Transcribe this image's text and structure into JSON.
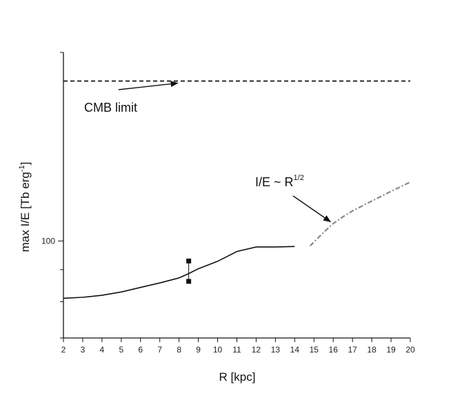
{
  "chart_data": {
    "type": "line",
    "xlabel": "R [kpc]",
    "ylabel": {
      "main": "max I/E [Tb erg",
      "sup": "-1",
      "close": "]"
    },
    "xlim": [
      2,
      20
    ],
    "ylim": [
      70,
      200
    ],
    "y_scale": "log",
    "x_ticks": [
      "2",
      "3",
      "4",
      "5",
      "6",
      "7",
      "8",
      "9",
      "10",
      "11",
      "12",
      "13",
      "14",
      "15",
      "16",
      "17",
      "18",
      "19",
      "20"
    ],
    "y_tick_labels": [
      {
        "value": 100,
        "label": "100"
      }
    ],
    "series": [
      {
        "style": "solid",
        "x": [
          2,
          3,
          4,
          5,
          6,
          7,
          8,
          8.5,
          9,
          10,
          11,
          12,
          13,
          14
        ],
        "y": [
          81,
          81.3,
          81.9,
          82.9,
          84.3,
          85.7,
          87.3,
          88.7,
          90.3,
          92.8,
          96.2,
          97.8,
          97.8,
          98.0
        ]
      },
      {
        "style": "dash-dot",
        "x": [
          14.8,
          15,
          15.5,
          16,
          16.5,
          17,
          18,
          19,
          20
        ],
        "y": [
          98.2,
          99.6,
          103.2,
          106.6,
          109.3,
          111.7,
          115.8,
          120.0,
          124.2
        ]
      },
      {
        "style": "dashed",
        "x": [
          2,
          20
        ],
        "y": [
          180,
          180
        ]
      }
    ],
    "error_bar": {
      "x": 8.5,
      "y_low": 86.2,
      "y_high": 92.9
    },
    "annotations": [
      {
        "text": "CMB limit",
        "arrow_to": {
          "x": 8.0,
          "y": 180
        }
      },
      {
        "text": "I/E ~ R",
        "sup": "1/2",
        "arrow_to": {
          "x": 16.0,
          "y": 106.5
        }
      }
    ],
    "grid": false,
    "legend": "none"
  }
}
